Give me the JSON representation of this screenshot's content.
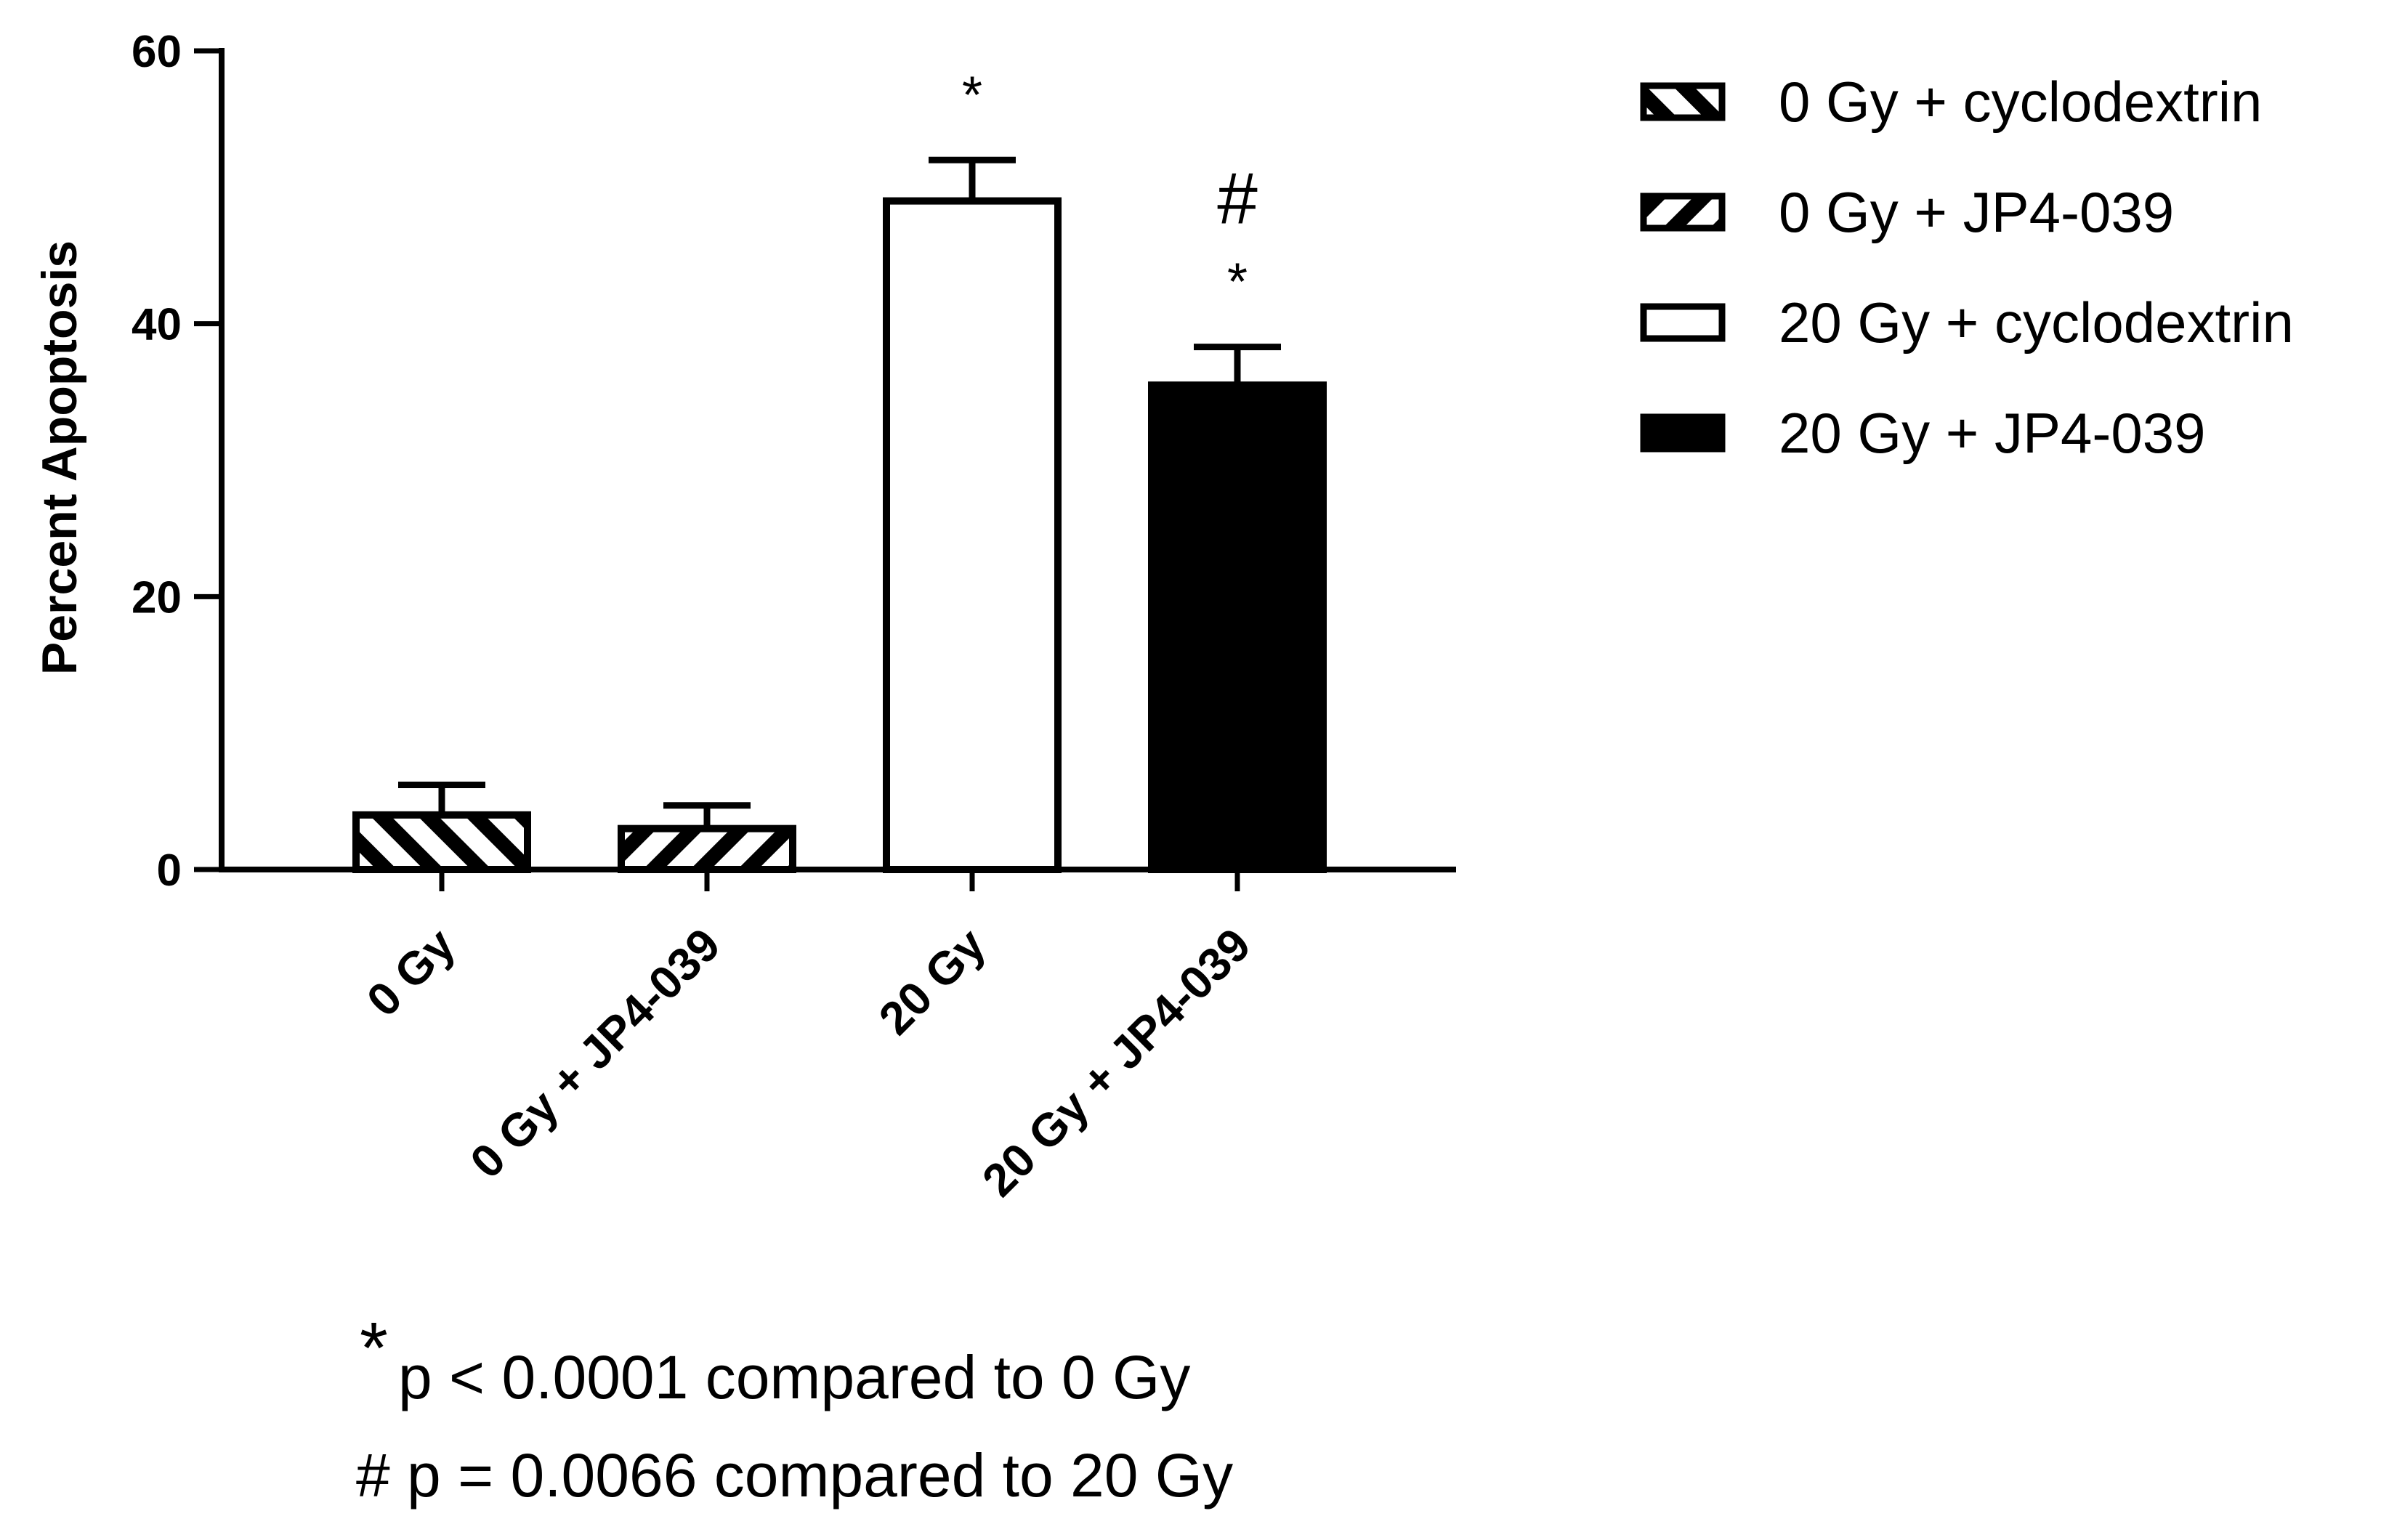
{
  "chart_data": {
    "type": "bar",
    "ylabel": "Percent Apoptosis",
    "xlabel": "",
    "ylim": [
      0,
      60
    ],
    "yticks": [
      0,
      20,
      40,
      60
    ],
    "categories": [
      "0 Gy",
      "0 Gy + JP4-039",
      "20 Gy",
      "20 Gy + JP4-039"
    ],
    "values": [
      4,
      3,
      49,
      35.5
    ],
    "errors": [
      2.2,
      1.7,
      3.0,
      2.8
    ],
    "significance": [
      "",
      "",
      "*",
      "#\n*"
    ],
    "legend": {
      "position": "top-right",
      "entries": [
        {
          "label": "0 Gy + cyclodextrin",
          "fill": "hatch-back"
        },
        {
          "label": "0 Gy + JP4-039",
          "fill": "hatch-forward"
        },
        {
          "label": "20 Gy + cyclodextrin",
          "fill": "white"
        },
        {
          "label": "20 Gy + JP4-039",
          "fill": "black"
        }
      ]
    },
    "footnotes": [
      "p < 0.0001 compared to 0 Gy",
      "# p = 0.0066 compared to 20 Gy"
    ],
    "footnote_star": "*",
    "grid": false
  }
}
